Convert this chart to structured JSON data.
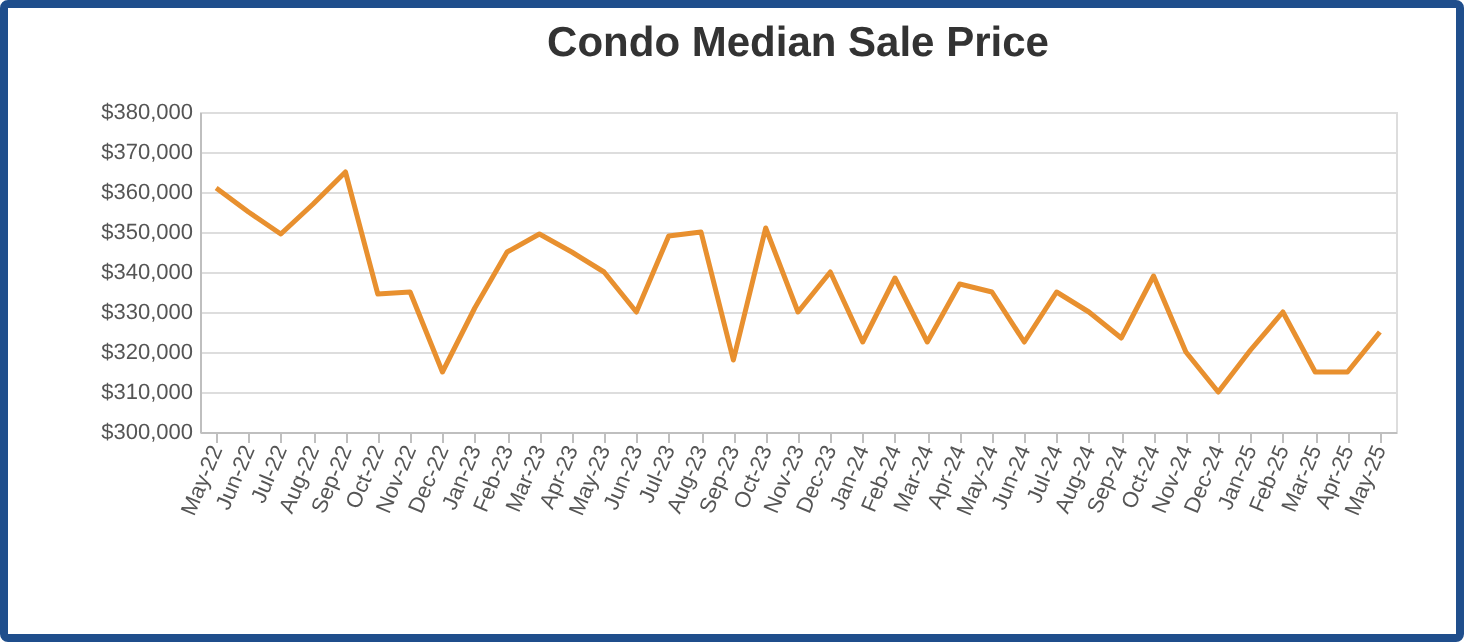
{
  "chart_data": {
    "type": "line",
    "title": "Condo Median Sale Price",
    "categories": [
      "May-22",
      "Jun-22",
      "Jul-22",
      "Aug-22",
      "Sep-22",
      "Oct-22",
      "Nov-22",
      "Dec-22",
      "Jan-23",
      "Feb-23",
      "Mar-23",
      "Apr-23",
      "May-23",
      "Jun-23",
      "Jul-23",
      "Aug-23",
      "Sep-23",
      "Oct-23",
      "Nov-23",
      "Dec-23",
      "Jan-24",
      "Feb-24",
      "Mar-24",
      "Apr-24",
      "May-24",
      "Jun-24",
      "Jul-24",
      "Aug-24",
      "Sep-24",
      "Oct-24",
      "Nov-24",
      "Dec-24",
      "Jan-25",
      "Feb-25",
      "Mar-25",
      "Apr-25",
      "May-25"
    ],
    "series": [
      {
        "color": "#e8902f",
        "values": [
          361000,
          355000,
          349500,
          357000,
          365000,
          334500,
          335000,
          315000,
          331000,
          345000,
          349500,
          345000,
          340000,
          330000,
          349000,
          350000,
          318000,
          351000,
          330000,
          340000,
          322500,
          338500,
          322500,
          337000,
          335000,
          322500,
          335000,
          330000,
          323500,
          339000,
          320000,
          310000,
          320500,
          330000,
          315000,
          315000,
          325000
        ]
      }
    ],
    "ylim": [
      300000,
      380000
    ],
    "yticks": [
      {
        "value": 300000,
        "label": "$300,000"
      },
      {
        "value": 310000,
        "label": "$310,000"
      },
      {
        "value": 320000,
        "label": "$320,000"
      },
      {
        "value": 330000,
        "label": "$330,000"
      },
      {
        "value": 340000,
        "label": "$340,000"
      },
      {
        "value": 350000,
        "label": "$350,000"
      },
      {
        "value": 360000,
        "label": "$360,000"
      },
      {
        "value": 370000,
        "label": "$370,000"
      },
      {
        "value": 380000,
        "label": "$380,000"
      }
    ],
    "grid": "y",
    "legend": false,
    "marker": "none",
    "line_style": "solid"
  }
}
